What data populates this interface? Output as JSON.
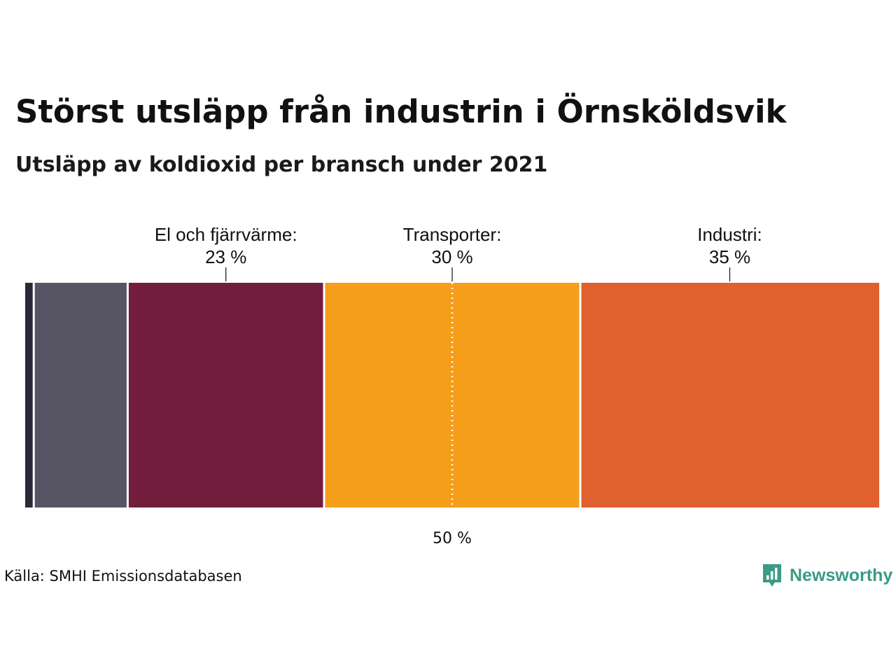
{
  "title": "Störst utsläpp från industrin i Örnsköldsvik",
  "subtitle": "Utsläpp av koldioxid per bransch under 2021",
  "source": "Källa: SMHI Emissionsdatabasen",
  "brand": {
    "name": "Newsworthy",
    "icon": "newsworthy-chart-icon",
    "color": "#3a9b87"
  },
  "chart_data": {
    "type": "bar",
    "orientation": "horizontal-stacked-100",
    "unit": "%",
    "segments": [
      {
        "value": 1,
        "color": "#2b2838",
        "label": "",
        "value_label": ""
      },
      {
        "value": 11,
        "color": "#575463",
        "label": "",
        "value_label": ""
      },
      {
        "value": 23,
        "color": "#731d3c",
        "label": "El och fjärrvärme:",
        "value_label": "23 %"
      },
      {
        "value": 30,
        "color": "#f59e1a",
        "label": "Transporter:",
        "value_label": "30 %"
      },
      {
        "value": 35,
        "color": "#e0602e",
        "label": "Industri:",
        "value_label": "35 %"
      }
    ],
    "midpoint": {
      "value": 50,
      "label": "50 %",
      "style": "dotted"
    },
    "xlim": [
      0,
      100
    ],
    "grid": false,
    "legend": "none"
  }
}
